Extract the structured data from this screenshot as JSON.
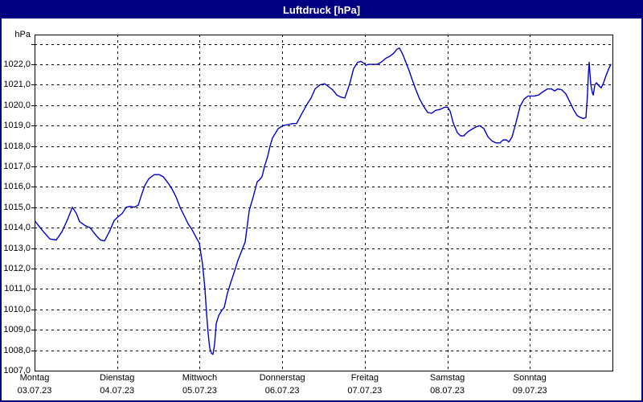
{
  "window": {
    "title": "Luftdruck [hPa]"
  },
  "colors": {
    "titlebar_bg": "#000080",
    "window_border": "#000080",
    "titlebar_text": "#ffffff",
    "curve": "#0000cc",
    "grid": "#000000",
    "background": "#ffffff"
  },
  "chart_data": {
    "type": "line",
    "title": "Luftdruck [hPa]",
    "unit_label": "hPa",
    "grid": "dashed",
    "legend": "none",
    "x_axis": {
      "t_range_days": [
        0,
        7
      ],
      "day_ticks": [
        {
          "t": 0,
          "label": "Montag",
          "date": "03.07.23"
        },
        {
          "t": 1,
          "label": "Dienstag",
          "date": "04.07.23"
        },
        {
          "t": 2,
          "label": "Mittwoch",
          "date": "05.07.23"
        },
        {
          "t": 3,
          "label": "Donnerstag",
          "date": "06.07.23"
        },
        {
          "t": 4,
          "label": "Freitag",
          "date": "07.07.23"
        },
        {
          "t": 5,
          "label": "Samstag",
          "date": "08.07.23"
        },
        {
          "t": 6,
          "label": "Sonntag",
          "date": "09.07.23"
        }
      ]
    },
    "y_axis": {
      "min": 1007,
      "max": 1023.46,
      "gridline_values": [
        1008,
        1009,
        1010,
        1011,
        1012,
        1013,
        1014,
        1015,
        1016,
        1017,
        1018,
        1019,
        1020,
        1021,
        1022,
        1023
      ],
      "tick_labels": [
        {
          "value": 1022,
          "label": "1022,0"
        },
        {
          "value": 1021,
          "label": "1021,0"
        },
        {
          "value": 1020,
          "label": "1020,0"
        },
        {
          "value": 1019,
          "label": "1019,0"
        },
        {
          "value": 1018,
          "label": "1018,0"
        },
        {
          "value": 1017,
          "label": "1017,0"
        },
        {
          "value": 1016,
          "label": "1016,0"
        },
        {
          "value": 1015,
          "label": "1015,0"
        },
        {
          "value": 1014,
          "label": "1014,0"
        },
        {
          "value": 1013,
          "label": "1013,0"
        },
        {
          "value": 1012,
          "label": "1012,0"
        },
        {
          "value": 1011,
          "label": "1011,0"
        },
        {
          "value": 1010,
          "label": "1010,0"
        },
        {
          "value": 1009,
          "label": "1009,0"
        },
        {
          "value": 1008,
          "label": "1008,0"
        },
        {
          "value": 1007,
          "label": "1007,0"
        }
      ]
    },
    "series": [
      {
        "name": "Luftdruck",
        "color": "#0000cc",
        "points": [
          [
            0.01,
            1014.3
          ],
          [
            0.088,
            1013.9
          ],
          [
            0.185,
            1013.45
          ],
          [
            0.263,
            1013.4
          ],
          [
            0.331,
            1013.8
          ],
          [
            0.399,
            1014.4
          ],
          [
            0.458,
            1015.0
          ],
          [
            0.506,
            1014.7
          ],
          [
            0.545,
            1014.3
          ],
          [
            0.613,
            1014.1
          ],
          [
            0.672,
            1014.0
          ],
          [
            0.75,
            1013.6
          ],
          [
            0.798,
            1013.4
          ],
          [
            0.847,
            1013.35
          ],
          [
            0.905,
            1013.8
          ],
          [
            0.964,
            1014.35
          ],
          [
            1.003,
            1014.5
          ],
          [
            1.061,
            1014.7
          ],
          [
            1.11,
            1015.0
          ],
          [
            1.159,
            1015.05
          ],
          [
            1.207,
            1015.0
          ],
          [
            1.256,
            1015.1
          ],
          [
            1.295,
            1015.6
          ],
          [
            1.334,
            1016.05
          ],
          [
            1.383,
            1016.4
          ],
          [
            1.451,
            1016.6
          ],
          [
            1.509,
            1016.6
          ],
          [
            1.558,
            1016.5
          ],
          [
            1.616,
            1016.2
          ],
          [
            1.665,
            1015.9
          ],
          [
            1.714,
            1015.5
          ],
          [
            1.762,
            1015.0
          ],
          [
            1.811,
            1014.6
          ],
          [
            1.86,
            1014.2
          ],
          [
            1.908,
            1013.9
          ],
          [
            1.967,
            1013.45
          ],
          [
            1.996,
            1013.25
          ],
          [
            2.035,
            1012.2
          ],
          [
            2.064,
            1011.0
          ],
          [
            2.083,
            1009.8
          ],
          [
            2.103,
            1008.8
          ],
          [
            2.122,
            1008.1
          ],
          [
            2.142,
            1007.85
          ],
          [
            2.161,
            1007.8
          ],
          [
            2.181,
            1008.3
          ],
          [
            2.2,
            1009.3
          ],
          [
            2.23,
            1009.7
          ],
          [
            2.268,
            1009.95
          ],
          [
            2.298,
            1010.1
          ],
          [
            2.337,
            1010.8
          ],
          [
            2.376,
            1011.3
          ],
          [
            2.424,
            1011.9
          ],
          [
            2.463,
            1012.4
          ],
          [
            2.502,
            1012.8
          ],
          [
            2.551,
            1013.3
          ],
          [
            2.6,
            1014.85
          ],
          [
            2.648,
            1015.5
          ],
          [
            2.697,
            1016.25
          ],
          [
            2.726,
            1016.35
          ],
          [
            2.755,
            1016.5
          ],
          [
            2.785,
            1017.0
          ],
          [
            2.824,
            1017.5
          ],
          [
            2.853,
            1018.0
          ],
          [
            2.882,
            1018.4
          ],
          [
            2.921,
            1018.65
          ],
          [
            2.95,
            1018.85
          ],
          [
            2.989,
            1018.95
          ],
          [
            3.008,
            1019.0
          ],
          [
            3.067,
            1019.05
          ],
          [
            3.125,
            1019.1
          ],
          [
            3.174,
            1019.1
          ],
          [
            3.232,
            1019.55
          ],
          [
            3.3,
            1020.05
          ],
          [
            3.349,
            1020.35
          ],
          [
            3.398,
            1020.8
          ],
          [
            3.456,
            1021.0
          ],
          [
            3.515,
            1021.05
          ],
          [
            3.563,
            1020.9
          ],
          [
            3.612,
            1020.75
          ],
          [
            3.661,
            1020.5
          ],
          [
            3.71,
            1020.4
          ],
          [
            3.758,
            1020.35
          ],
          [
            3.817,
            1021.05
          ],
          [
            3.865,
            1021.8
          ],
          [
            3.914,
            1022.1
          ],
          [
            3.953,
            1022.15
          ],
          [
            3.992,
            1022.05
          ],
          [
            4.011,
            1021.95
          ],
          [
            4.041,
            1022.0
          ],
          [
            4.099,
            1022.0
          ],
          [
            4.148,
            1022.0
          ],
          [
            4.196,
            1022.1
          ],
          [
            4.255,
            1022.3
          ],
          [
            4.304,
            1022.4
          ],
          [
            4.352,
            1022.55
          ],
          [
            4.391,
            1022.75
          ],
          [
            4.42,
            1022.8
          ],
          [
            4.459,
            1022.5
          ],
          [
            4.498,
            1022.1
          ],
          [
            4.537,
            1021.7
          ],
          [
            4.566,
            1021.35
          ],
          [
            4.615,
            1020.8
          ],
          [
            4.664,
            1020.3
          ],
          [
            4.712,
            1019.95
          ],
          [
            4.761,
            1019.65
          ],
          [
            4.81,
            1019.6
          ],
          [
            4.858,
            1019.75
          ],
          [
            4.917,
            1019.8
          ],
          [
            4.966,
            1019.9
          ],
          [
            5.005,
            1019.9
          ],
          [
            5.034,
            1019.7
          ],
          [
            5.073,
            1019.1
          ],
          [
            5.122,
            1018.65
          ],
          [
            5.161,
            1018.5
          ],
          [
            5.2,
            1018.5
          ],
          [
            5.248,
            1018.7
          ],
          [
            5.307,
            1018.85
          ],
          [
            5.355,
            1018.95
          ],
          [
            5.394,
            1019.0
          ],
          [
            5.443,
            1018.85
          ],
          [
            5.492,
            1018.45
          ],
          [
            5.54,
            1018.25
          ],
          [
            5.589,
            1018.15
          ],
          [
            5.638,
            1018.15
          ],
          [
            5.677,
            1018.3
          ],
          [
            5.716,
            1018.3
          ],
          [
            5.745,
            1018.2
          ],
          [
            5.784,
            1018.45
          ],
          [
            5.832,
            1019.15
          ],
          [
            5.881,
            1019.95
          ],
          [
            5.93,
            1020.3
          ],
          [
            5.979,
            1020.45
          ],
          [
            6.008,
            1020.45
          ],
          [
            6.056,
            1020.45
          ],
          [
            6.105,
            1020.5
          ],
          [
            6.154,
            1020.65
          ],
          [
            6.212,
            1020.8
          ],
          [
            6.261,
            1020.8
          ],
          [
            6.3,
            1020.7
          ],
          [
            6.338,
            1020.8
          ],
          [
            6.387,
            1020.75
          ],
          [
            6.436,
            1020.55
          ],
          [
            6.485,
            1020.15
          ],
          [
            6.533,
            1019.75
          ],
          [
            6.572,
            1019.5
          ],
          [
            6.611,
            1019.4
          ],
          [
            6.65,
            1019.35
          ],
          [
            6.679,
            1019.4
          ],
          [
            6.694,
            1020.3
          ],
          [
            6.708,
            1021.5
          ],
          [
            6.718,
            1022.1
          ],
          [
            6.738,
            1021.0
          ],
          [
            6.757,
            1020.6
          ],
          [
            6.767,
            1020.5
          ],
          [
            6.787,
            1021.0
          ],
          [
            6.806,
            1021.1
          ],
          [
            6.835,
            1020.95
          ],
          [
            6.864,
            1020.85
          ],
          [
            6.893,
            1021.1
          ],
          [
            6.922,
            1021.45
          ],
          [
            6.951,
            1021.75
          ],
          [
            6.981,
            1022.0
          ]
        ]
      }
    ]
  }
}
